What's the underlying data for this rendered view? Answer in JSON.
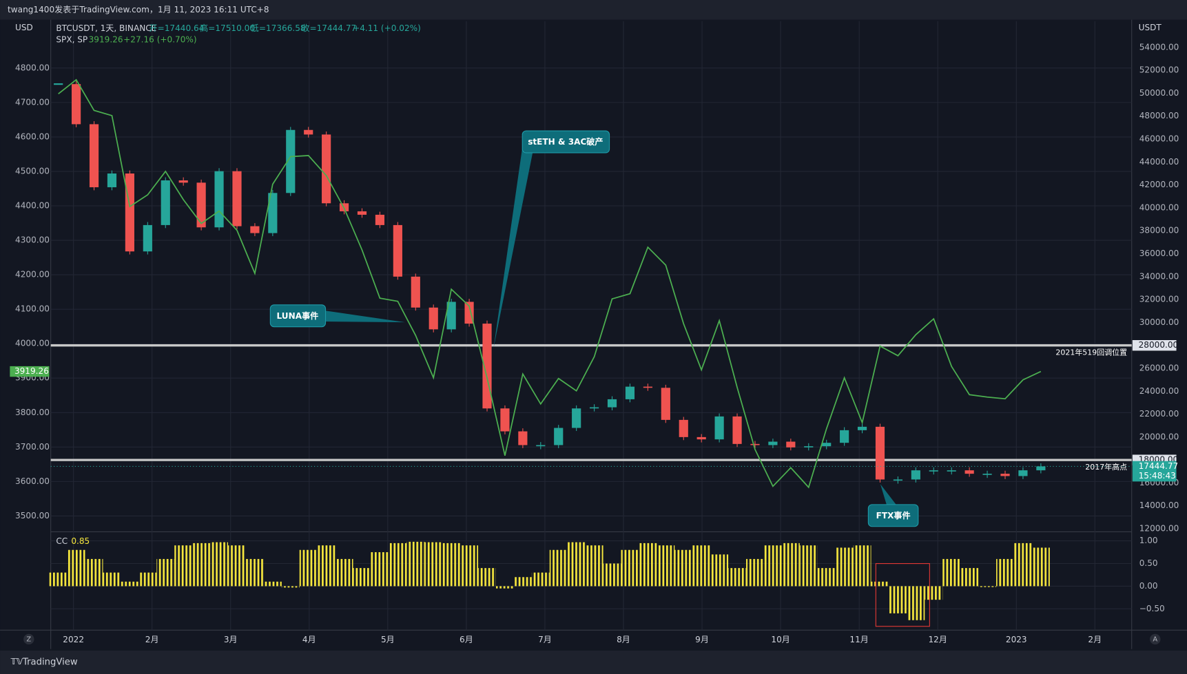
{
  "header": "twang1400发表于TradingView.com，1月 11, 2023 16:11 UTC+8",
  "footer": "TradingView",
  "corner_left": "Z",
  "corner_right": "A",
  "chart_data": [
    {
      "type": "price",
      "ylabel": "USD",
      "y2label": "USDT",
      "ohlc": [
        "开=17440.64",
        "高=17510.00",
        "低=17366.58",
        "收=17444.77"
      ],
      "change": "+4.11 (+0.02%)",
      "change2": "+27.16 (+0.70%)",
      "countdown": "15:48:43",
      "xtick_labels": [
        "2022",
        "2月",
        "3月",
        "4月",
        "5月",
        "6月",
        "7月",
        "8月",
        "9月",
        "10月",
        "11月",
        "12月",
        "2023",
        "2月"
      ],
      "series": [
        {
          "name": "BTCUSDT, 1天, BINANCE",
          "axis": "y2",
          "up_color": "#26a69a",
          "down_color": "#ef5350",
          "values": [
            50800,
            47300,
            41800,
            43000,
            36200,
            38500,
            42400,
            42200,
            38300,
            43200,
            38400,
            37800,
            41300,
            46800,
            46400,
            40400,
            39700,
            39400,
            38500,
            34000,
            31300,
            29400,
            31800,
            29900,
            22500,
            20500,
            19300,
            19300,
            20800,
            22500,
            22600,
            23300,
            24400,
            24300,
            21500,
            20000,
            19800,
            21800,
            19400,
            19300,
            19600,
            19100,
            19200,
            19500,
            20600,
            20900,
            16300,
            16300,
            17100,
            17100,
            17100,
            16800,
            16800,
            16600,
            17100,
            17444.77
          ]
        },
        {
          "name": "SPX, SP",
          "color": "#4caf50",
          "values": [
            4725,
            4766,
            4677,
            4662,
            4398,
            4432,
            4500,
            4418,
            4349,
            4385,
            4329,
            4204,
            4463,
            4543,
            4546,
            4488,
            4393,
            4272,
            4132,
            4123,
            4024,
            3901,
            4158,
            4109,
            3901,
            3675,
            3912,
            3825,
            3899,
            3863,
            3962,
            4130,
            4145,
            4280,
            4228,
            4058,
            3924,
            4067,
            3873,
            3693,
            3586,
            3640,
            3583,
            3753,
            3901,
            3771,
            3993,
            3965,
            4026,
            4072,
            3934,
            3852,
            3845,
            3840,
            3895,
            3919.26
          ]
        }
      ],
      "ylim": [
        3454,
        4936
      ],
      "yticks": [
        {
          "value": 3500,
          "label": "3500.00"
        },
        {
          "value": 3600,
          "label": "3600.00"
        },
        {
          "value": 3700,
          "label": "3700.00"
        },
        {
          "value": 3800,
          "label": "3800.00"
        },
        {
          "value": 3900,
          "label": "3900.00"
        },
        {
          "value": 4000,
          "label": "4000.00"
        },
        {
          "value": 4100,
          "label": "4100.00"
        },
        {
          "value": 4200,
          "label": "4200.00"
        },
        {
          "value": 4300,
          "label": "4300.00"
        },
        {
          "value": 4400,
          "label": "4400.00"
        },
        {
          "value": 4500,
          "label": "4500.00"
        },
        {
          "value": 4600,
          "label": "4600.00"
        },
        {
          "value": 4700,
          "label": "4700.00"
        },
        {
          "value": 4800,
          "label": "4800.00"
        }
      ],
      "y2lim": [
        11736,
        56290
      ],
      "y2ticks": [
        {
          "value": 12000,
          "label": "12000.00"
        },
        {
          "value": 14000,
          "label": "14000.00"
        },
        {
          "value": 16000,
          "label": "16000.00"
        },
        {
          "value": 20000,
          "label": "20000.00"
        },
        {
          "value": 22000,
          "label": "22000.00"
        },
        {
          "value": 24000,
          "label": "24000.00"
        },
        {
          "value": 26000,
          "label": "26000.00"
        },
        {
          "value": 30000,
          "label": "30000.00"
        },
        {
          "value": 32000,
          "label": "32000.00"
        },
        {
          "value": 34000,
          "label": "34000.00"
        },
        {
          "value": 36000,
          "label": "36000.00"
        },
        {
          "value": 38000,
          "label": "38000.00"
        },
        {
          "value": 40000,
          "label": "40000.00"
        },
        {
          "value": 42000,
          "label": "42000.00"
        },
        {
          "value": 44000,
          "label": "44000.00"
        },
        {
          "value": 46000,
          "label": "46000.00"
        },
        {
          "value": 48000,
          "label": "48000.00"
        },
        {
          "value": 50000,
          "label": "50000.00"
        },
        {
          "value": 52000,
          "label": "52000.00"
        },
        {
          "value": 54000,
          "label": "54000.00"
        }
      ],
      "hlines": [
        {
          "value": 28000,
          "label": "28000.00",
          "text": "2021年519回调位置"
        },
        {
          "value": 18000,
          "label": "18000.00",
          "text": "2017年高点"
        }
      ],
      "annotations": [
        "stETH & 3AC破产",
        "LUNA事件",
        "FTX事件"
      ]
    },
    {
      "type": "bar",
      "name": "CC",
      "color": "#f5e63d",
      "values": [
        0.3,
        0.8,
        0.6,
        0.3,
        0.1,
        0.3,
        0.6,
        0.9,
        0.95,
        0.97,
        0.9,
        0.6,
        0.1,
        -0.03,
        0.8,
        0.9,
        0.6,
        0.4,
        0.75,
        0.95,
        0.98,
        0.97,
        0.95,
        0.9,
        0.4,
        -0.05,
        0.2,
        0.3,
        0.8,
        0.97,
        0.9,
        0.5,
        0.8,
        0.95,
        0.9,
        0.8,
        0.9,
        0.7,
        0.4,
        0.6,
        0.9,
        0.95,
        0.9,
        0.4,
        0.85,
        0.9,
        0.1,
        -0.6,
        -0.75,
        -0.3,
        0.6,
        0.4,
        -0.02,
        0.6,
        0.95,
        0.85
      ],
      "ylim": [
        -0.97,
        1.2
      ],
      "yticks": [
        {
          "value": 1,
          "label": "1.00"
        },
        {
          "value": 0.5,
          "label": "0.50"
        },
        {
          "value": 0,
          "label": "0.00"
        },
        {
          "value": -0.5,
          "label": "−0.50"
        }
      ]
    }
  ]
}
